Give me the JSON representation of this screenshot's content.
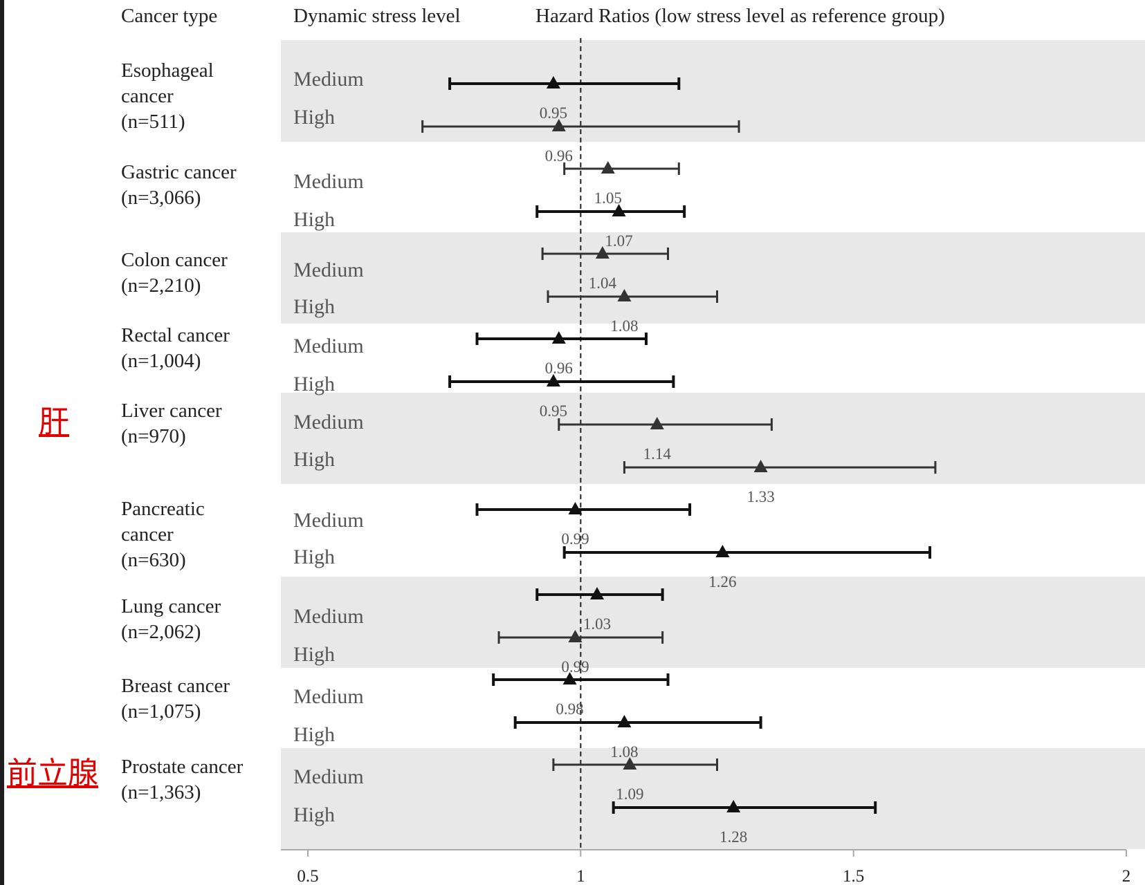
{
  "headers": {
    "cancer_type": "Cancer type",
    "stress_level": "Dynamic stress level",
    "hazard": "Hazard Ratios (low stress level as reference group)"
  },
  "notes": [
    "肝",
    "前立腺"
  ],
  "chart_data": {
    "type": "forest",
    "reference_line": 1,
    "xlim": [
      0.5,
      2
    ],
    "x_ticks": [
      "0.5",
      "1",
      "1.5",
      "2"
    ],
    "grid": false,
    "groups": [
      {
        "label": [
          "Esophageal",
          "cancer",
          "(n=511)"
        ],
        "shaded": true,
        "rows": [
          {
            "level": "Medium",
            "hr": 0.95,
            "lo": 0.76,
            "hi": 1.18,
            "label": "0.95"
          },
          {
            "level": "High",
            "hr": 0.96,
            "lo": 0.71,
            "hi": 1.29,
            "label": "0.96"
          }
        ]
      },
      {
        "label": [
          "Gastric cancer",
          "(n=3,066)"
        ],
        "shaded": false,
        "rows": [
          {
            "level": "Medium",
            "hr": 1.05,
            "lo": 0.97,
            "hi": 1.18,
            "label": "1.05"
          },
          {
            "level": "High",
            "hr": 1.07,
            "lo": 0.92,
            "hi": 1.19,
            "label": "1.07"
          }
        ]
      },
      {
        "label": [
          "Colon cancer",
          "(n=2,210)"
        ],
        "shaded": true,
        "rows": [
          {
            "level": "Medium",
            "hr": 1.04,
            "lo": 0.93,
            "hi": 1.16,
            "label": "1.04"
          },
          {
            "level": "High",
            "hr": 1.08,
            "lo": 0.94,
            "hi": 1.25,
            "label": "1.08"
          }
        ]
      },
      {
        "label": [
          "Rectal cancer",
          "(n=1,004)"
        ],
        "shaded": false,
        "rows": [
          {
            "level": "Medium",
            "hr": 0.96,
            "lo": 0.81,
            "hi": 1.12,
            "label": "0.96"
          },
          {
            "level": "High",
            "hr": 0.95,
            "lo": 0.76,
            "hi": 1.17,
            "label": "0.95"
          }
        ]
      },
      {
        "label": [
          "Liver cancer",
          "(n=970)"
        ],
        "shaded": true,
        "rows": [
          {
            "level": "Medium",
            "hr": 1.14,
            "lo": 0.96,
            "hi": 1.35,
            "label": "1.14"
          },
          {
            "level": "High",
            "hr": 1.33,
            "lo": 1.08,
            "hi": 1.65,
            "label": "1.33"
          }
        ]
      },
      {
        "label": [
          "Pancreatic",
          "cancer",
          "(n=630)"
        ],
        "shaded": false,
        "rows": [
          {
            "level": "Medium",
            "hr": 0.99,
            "lo": 0.81,
            "hi": 1.2,
            "label": "0.99"
          },
          {
            "level": "High",
            "hr": 1.26,
            "lo": 0.97,
            "hi": 1.64,
            "label": "1.26"
          }
        ]
      },
      {
        "label": [
          "Lung cancer",
          "(n=2,062)"
        ],
        "shaded": true,
        "rows": [
          {
            "level": "Medium",
            "hr": 1.03,
            "lo": 0.92,
            "hi": 1.15,
            "label": "1.03"
          },
          {
            "level": "High",
            "hr": 0.99,
            "lo": 0.85,
            "hi": 1.15,
            "label": "0.99"
          }
        ]
      },
      {
        "label": [
          "Breast cancer",
          "(n=1,075)"
        ],
        "shaded": false,
        "rows": [
          {
            "level": "Medium",
            "hr": 0.98,
            "lo": 0.84,
            "hi": 1.16,
            "label": "0.98"
          },
          {
            "level": "High",
            "hr": 1.08,
            "lo": 0.88,
            "hi": 1.33,
            "label": "1.08"
          }
        ]
      },
      {
        "label": [
          "Prostate cancer",
          "(n=1,363)"
        ],
        "shaded": true,
        "rows": [
          {
            "level": "Medium",
            "hr": 1.09,
            "lo": 0.95,
            "hi": 1.25,
            "label": "1.09"
          },
          {
            "level": "High",
            "hr": 1.28,
            "lo": 1.06,
            "hi": 1.54,
            "label": "1.28"
          }
        ]
      }
    ]
  }
}
